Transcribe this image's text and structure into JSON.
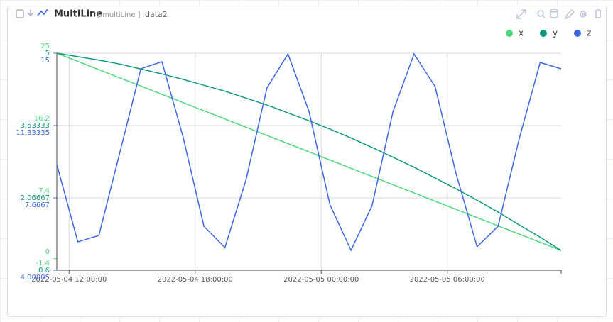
{
  "header": {
    "title": "MultiLine",
    "type_label": "[ multiLine ]",
    "source": "data2"
  },
  "chart_data": {
    "type": "line",
    "x": [
      "2022-05-04 11:25:00",
      "2022-05-04 12:25:00",
      "2022-05-04 13:25:00",
      "2022-05-04 14:25:00",
      "2022-05-04 15:25:00",
      "2022-05-04 16:25:00",
      "2022-05-04 17:25:00",
      "2022-05-04 18:25:00",
      "2022-05-04 19:25:00",
      "2022-05-04 20:25:00",
      "2022-05-04 21:25:00",
      "2022-05-04 22:25:00",
      "2022-05-04 23:25:00",
      "2022-05-05 00:25:00",
      "2022-05-05 01:25:00",
      "2022-05-05 02:25:00",
      "2022-05-05 03:25:00",
      "2022-05-05 04:25:00",
      "2022-05-05 05:25:00",
      "2022-05-05 06:25:00",
      "2022-05-05 07:25:00",
      "2022-05-05 08:25:00",
      "2022-05-05 09:25:00",
      "2022-05-05 10:25:00",
      "2022-05-05 11:25:00"
    ],
    "xlim": [
      "2022-05-04 11:25:00",
      "2022-05-05 11:25:00"
    ],
    "xticks": [
      "2022-05-04 12:00:00",
      "2022-05-04 18:00:00",
      "2022-05-05 00:00:00",
      "2022-05-05 06:00:00"
    ],
    "series": [
      {
        "name": "x",
        "color": "#4cd97b",
        "axis": "y",
        "values": [
          25,
          24,
          23,
          22,
          21,
          20,
          19,
          18,
          17,
          16,
          15,
          14,
          13,
          12,
          11,
          10,
          9,
          8,
          7,
          6,
          5,
          4,
          3,
          2,
          1
        ]
      },
      {
        "name": "y",
        "color": "#0f9a80",
        "axis": "y2",
        "values": [
          5.0,
          4.93,
          4.86,
          4.78,
          4.68,
          4.58,
          4.47,
          4.35,
          4.23,
          4.09,
          3.95,
          3.79,
          3.63,
          3.46,
          3.28,
          3.09,
          2.89,
          2.69,
          2.47,
          2.25,
          2.02,
          1.78,
          1.52,
          1.27,
          1.0
        ]
      },
      {
        "name": "z",
        "color": "#3b68e0",
        "axis": "y3",
        "values": [
          9.36,
          5.44,
          5.76,
          9.97,
          14.21,
          14.57,
          10.79,
          6.23,
          5.15,
          8.57,
          13.24,
          14.96,
          12.05,
          7.31,
          5.01,
          7.27,
          12.05,
          14.96,
          13.31,
          8.89,
          5.19,
          6.23,
          10.65,
          14.53,
          14.21
        ]
      }
    ],
    "ylim": [
      -1.4,
      25
    ],
    "yticks": [
      -1.4,
      0,
      7.4,
      16.2,
      25
    ],
    "y2lim": [
      0.6,
      5
    ],
    "y2ticks": [
      0.6,
      2.06667,
      3.53333,
      5
    ],
    "y3lim": [
      4.00005,
      15
    ],
    "y3ticks": [
      4.00005,
      7.6667,
      11.33335,
      15
    ],
    "grid": true,
    "legend": "top-right"
  }
}
